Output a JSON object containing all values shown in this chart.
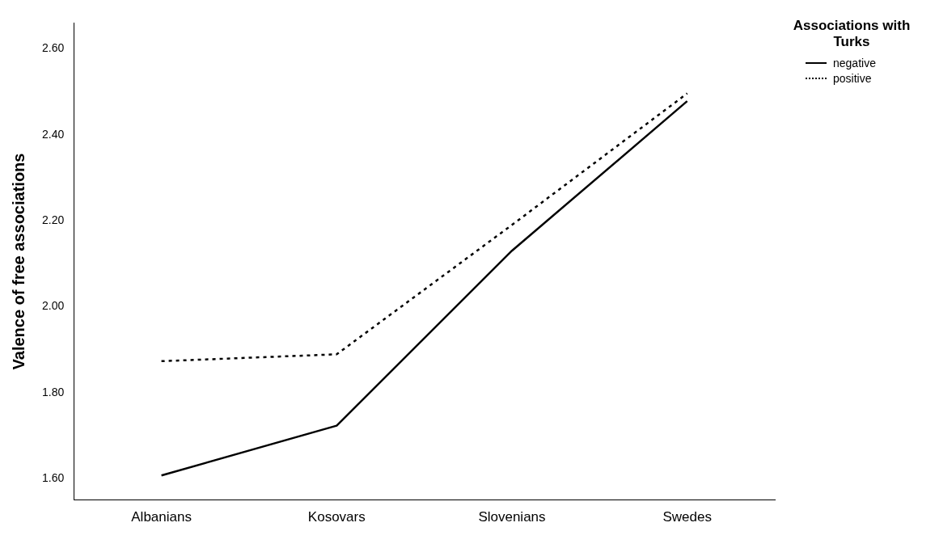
{
  "chart_data": {
    "type": "line",
    "ylabel": "Valence of free associations",
    "legend_title": "Associations with Turks",
    "legend": "top right",
    "grid": false,
    "marker": "none",
    "categories": [
      "Albanians",
      "Kosovars",
      "Slovenians",
      "Swedes"
    ],
    "ylim": [
      1.55,
      2.66
    ],
    "yticks": [
      {
        "value": 1.6,
        "label": "1.60"
      },
      {
        "value": 1.8,
        "label": "1.80"
      },
      {
        "value": 2.0,
        "label": "2.00"
      },
      {
        "value": 2.2,
        "label": "2.20"
      },
      {
        "value": 2.4,
        "label": "2.40"
      },
      {
        "value": 2.6,
        "label": "2.60"
      }
    ],
    "series": [
      {
        "name": "negative",
        "color": "#000000",
        "line_style": "solid",
        "values": [
          1.607,
          1.723,
          2.13,
          2.478
        ]
      },
      {
        "name": "positive",
        "color": "#000000",
        "line_style": "dotted",
        "values": [
          1.873,
          1.889,
          2.19,
          2.496
        ]
      }
    ]
  }
}
